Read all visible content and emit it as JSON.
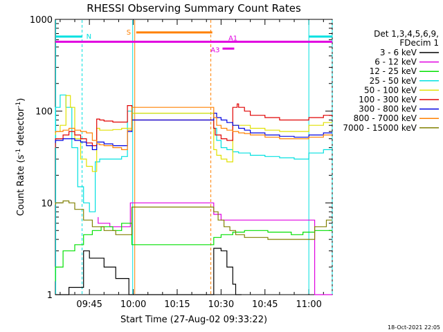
{
  "chart_data": {
    "type": "line",
    "title": "RHESSI Observing Summary Count Rates",
    "xlabel": "Start Time (27-Aug-02 09:33:22)",
    "ylabel_main": "Count Rate (s",
    "ylabel_sup1": "-1",
    "ylabel_mid": " detector",
    "ylabel_sup2": "-1",
    "ylabel_end": ")",
    "yscale": "log",
    "ylim": [
      1,
      1000
    ],
    "xlim_minutes": [
      573.37,
      668
    ],
    "x_ticks": [
      {
        "label": "09:45",
        "value": 585
      },
      {
        "label": "10:00",
        "value": 600
      },
      {
        "label": "10:15",
        "value": 615
      },
      {
        "label": "10:30",
        "value": 630
      },
      {
        "label": "10:45",
        "value": 645
      },
      {
        "label": "11:00",
        "value": 660
      }
    ],
    "y_ticks": [
      {
        "label": "1",
        "value": 1
      },
      {
        "label": "10",
        "value": 10
      },
      {
        "label": "100",
        "value": 100
      },
      {
        "label": "1000",
        "value": 1000
      }
    ],
    "legend_header": [
      "Det 1,3,4,5,6,9,",
      "FDecim 1"
    ],
    "series": [
      {
        "name": "3 - 6 keV",
        "color": "#000000",
        "x": [
          573.4,
          578,
          583,
          585,
          590,
          594,
          598.5,
          599.5,
          627.5,
          630,
          632,
          634,
          635,
          637
        ],
        "y": [
          1,
          1,
          1.2,
          3.0,
          2.5,
          2.0,
          1.5,
          1,
          1,
          3.2,
          3.0,
          2.0,
          1.3,
          1
        ]
      },
      {
        "name": "6 - 12 keV",
        "color": "#e000e0",
        "x": [
          588,
          592,
          596,
          599,
          627.5,
          630,
          635,
          640,
          645,
          650,
          655,
          660,
          662,
          664,
          668
        ],
        "y": [
          7.0,
          6.0,
          5.5,
          5.5,
          10.0,
          7.5,
          6.5,
          6.5,
          6.5,
          6.5,
          6.5,
          6.5,
          6.5,
          1,
          1
        ]
      },
      {
        "name": "12 - 25 keV",
        "color": "#00e000",
        "x": [
          573.4,
          576,
          580,
          583,
          586,
          589,
          593,
          596,
          599.5,
          627.5,
          630,
          634,
          638,
          642,
          646,
          650,
          654,
          658,
          662,
          666,
          668
        ],
        "y": [
          1.4,
          2.0,
          3.0,
          3.5,
          4.5,
          5.0,
          5.5,
          5.0,
          6.0,
          3.5,
          4.2,
          4.5,
          4.8,
          5.0,
          5.0,
          4.8,
          4.8,
          4.5,
          4.8,
          5.0,
          5.0
        ]
      },
      {
        "name": "25 - 50 keV",
        "color": "#00e0e0",
        "x": [
          573.4,
          575,
          577,
          579,
          581,
          583,
          585,
          587,
          588.5,
          590,
          592,
          594,
          596,
          598,
          599.5,
          627.5,
          628.5,
          630,
          632,
          634,
          636,
          638,
          640,
          645,
          650,
          655,
          660,
          665,
          668
        ],
        "y": [
          45,
          110,
          150,
          110,
          40,
          15,
          10,
          8,
          28,
          30,
          30,
          30,
          30,
          32,
          100,
          95,
          65,
          48,
          40,
          38,
          36,
          35,
          35,
          33,
          32,
          31,
          30,
          35,
          38
        ]
      },
      {
        "name": "50 - 100 keV",
        "color": "#e0e000",
        "x": [
          573.4,
          575,
          577,
          578.5,
          580,
          582,
          584,
          586,
          587.5,
          588.5,
          590,
          593,
          596,
          599.5,
          627.5,
          628.5,
          630,
          632,
          634,
          635.5,
          637,
          640,
          645,
          650,
          655,
          660,
          665,
          668
        ],
        "y": [
          55,
          60,
          70,
          148,
          110,
          50,
          30,
          25,
          22,
          65,
          62,
          62,
          63,
          65,
          95,
          38,
          33,
          30,
          28,
          70,
          70,
          70,
          65,
          62,
          60,
          60,
          70,
          75
        ]
      },
      {
        "name": "100 - 300 keV",
        "color": "#e00000",
        "x": [
          573.4,
          576,
          578,
          580,
          582,
          584,
          586,
          587.5,
          588.5,
          590,
          593,
          596,
          598,
          599.5,
          627.5,
          628,
          630,
          632,
          634,
          635.5,
          636,
          638,
          640,
          645,
          650,
          655,
          660,
          665,
          668
        ],
        "y": [
          40,
          50,
          55,
          60,
          55,
          50,
          45,
          42,
          82,
          80,
          78,
          76,
          76,
          115,
          80,
          65,
          55,
          50,
          48,
          110,
          120,
          110,
          100,
          90,
          85,
          80,
          80,
          85,
          90
        ]
      },
      {
        "name": "300 - 800 keV",
        "color": "#0000e0",
        "x": [
          573.4,
          576,
          578,
          580,
          582,
          584,
          586,
          587.5,
          588.5,
          590,
          593,
          596,
          598,
          599.5,
          627.5,
          628.5,
          630,
          632,
          634,
          636,
          638,
          640,
          645,
          650,
          655,
          660,
          665,
          668
        ],
        "y": [
          45,
          48,
          50,
          50,
          48,
          46,
          42,
          38,
          46,
          46,
          44,
          42,
          42,
          60,
          80,
          95,
          85,
          80,
          75,
          70,
          65,
          62,
          58,
          55,
          53,
          52,
          55,
          58
        ]
      },
      {
        "name": "800 - 7000 keV",
        "color": "#ff8000",
        "x": [
          573.4,
          576,
          578,
          580,
          582,
          584,
          586,
          587.5,
          588.5,
          590,
          593,
          596,
          598,
          599.5,
          627.5,
          628.5,
          630,
          632,
          634,
          636,
          638,
          640,
          645,
          650,
          655,
          660,
          665,
          668
        ],
        "y": [
          58,
          60,
          62,
          65,
          62,
          60,
          58,
          48,
          44,
          43,
          42,
          40,
          38,
          62,
          110,
          85,
          70,
          65,
          62,
          60,
          58,
          57,
          55,
          52,
          50,
          50,
          52,
          55
        ]
      },
      {
        "name": "7000 - 15000 keV",
        "color": "#808000",
        "x": [
          573.4,
          576,
          578,
          580,
          583,
          586,
          590,
          594,
          598,
          599.5,
          627.5,
          629,
          631,
          633,
          635,
          638,
          642,
          646,
          650,
          654,
          658,
          662,
          666,
          668
        ],
        "y": [
          9.5,
          10.0,
          10.5,
          10.0,
          8.5,
          6.5,
          5.5,
          5.0,
          4.5,
          4.5,
          9.0,
          8.0,
          6.5,
          5.5,
          5.0,
          4.5,
          4.2,
          4.2,
          4.0,
          4.0,
          4.0,
          4.0,
          5.5,
          6.5
        ]
      }
    ],
    "flag_bars": [
      {
        "label": "N",
        "color": "#00e0e0",
        "y": 650,
        "segments": [
          [
            573.4,
            582.5
          ],
          [
            660,
            668
          ]
        ]
      },
      {
        "label": "S",
        "color": "#ff8000",
        "y": 720,
        "segments": [
          [
            601,
            627
          ]
        ]
      },
      {
        "label": "A1",
        "color": "#e000e0",
        "y": 570,
        "segments": [
          [
            573.4,
            668
          ]
        ]
      },
      {
        "label": "A3",
        "color": "#e000e0",
        "y": 480,
        "segments": [
          [
            630.5,
            634.5
          ]
        ]
      }
    ],
    "vertical_lines": [
      {
        "x": 573.5,
        "color": "#00e0e0",
        "style": "solid"
      },
      {
        "x": 582.5,
        "color": "#00e0e0",
        "style": "dashed"
      },
      {
        "x": 600.5,
        "color": "#ff8000",
        "style": "solid"
      },
      {
        "x": 626.5,
        "color": "#ff8000",
        "style": "dashed"
      },
      {
        "x": 599.8,
        "color": "#00e0e0",
        "style": "solid"
      },
      {
        "x": 660,
        "color": "#00e0e0",
        "style": "solid"
      },
      {
        "x": 668,
        "color": "#00e0e0",
        "style": "dashed"
      }
    ],
    "footer_timestamp": "18-Oct-2021 22:05"
  }
}
